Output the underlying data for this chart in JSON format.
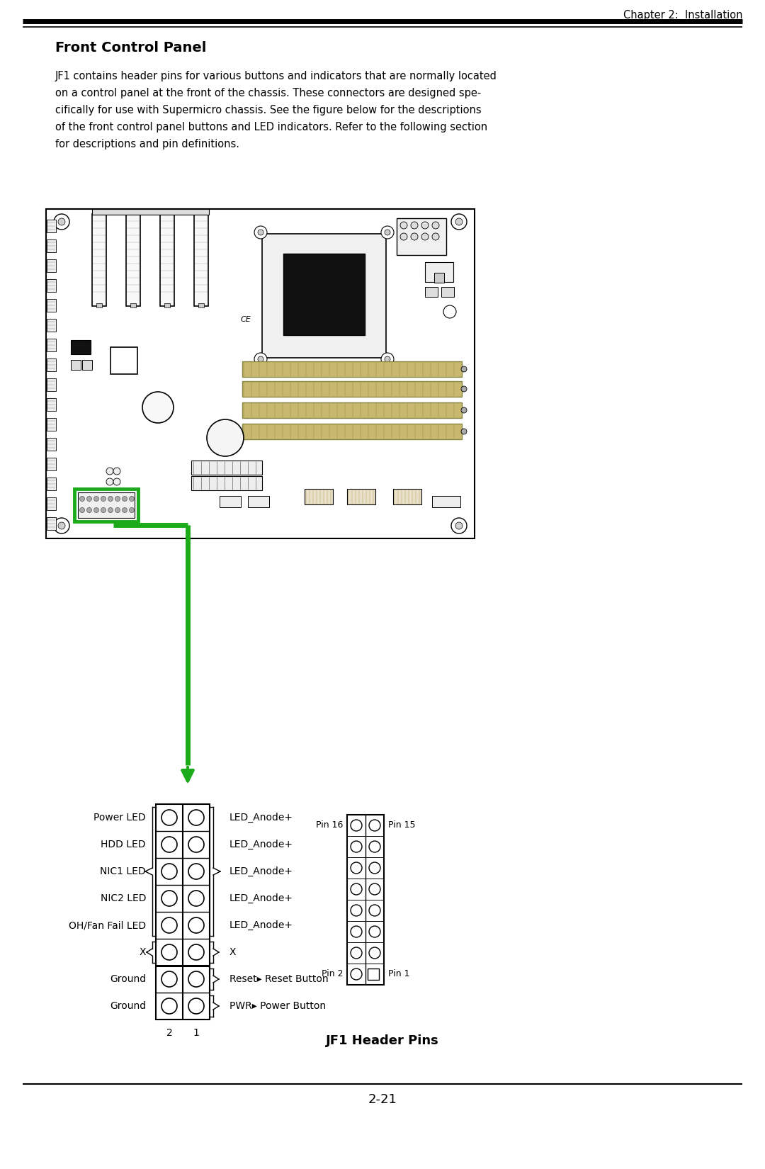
{
  "title": "Front Control Panel",
  "chapter_header": "Chapter 2:  Installation",
  "page_number": "2-21",
  "footer_label": "JF1 Header Pins",
  "body_text_lines": [
    "JF1 contains header pins for various buttons and indicators that are normally located",
    "on a control panel at the front of the chassis. These connectors are designed spe-",
    "cifically for use with Supermicro chassis. See the figure below for the descriptions",
    "of the front control panel buttons and LED indicators. Refer to the following section",
    "for descriptions and pin definitions."
  ],
  "pin_rows": [
    {
      "left": "Power LED",
      "right": "LED_Anode+",
      "has_right_bracket": true
    },
    {
      "left": "HDD LED",
      "right": "LED_Anode+",
      "has_right_bracket": true
    },
    {
      "left": "NIC1 LED",
      "right": "LED_Anode+",
      "has_right_bracket": true
    },
    {
      "left": "NIC2 LED",
      "right": "LED_Anode+",
      "has_right_bracket": true
    },
    {
      "left": "OH/Fan Fail LED",
      "right": "LED_Anode+",
      "has_right_bracket": true
    },
    {
      "left": "X",
      "right": "X",
      "has_right_bracket": true
    },
    {
      "left": "Ground",
      "right": "Reset",
      "has_right_bracket": true,
      "right_extra": "Reset Button"
    },
    {
      "left": "Ground",
      "right": "PWR",
      "has_right_bracket": true,
      "right_extra": "Power Button"
    }
  ],
  "col_labels": [
    "2",
    "1"
  ],
  "pin16_label": "Pin 16",
  "pin15_label": "Pin 15",
  "pin2_label": "Pin 2",
  "pin1_label": "Pin 1",
  "bg_color": "#ffffff",
  "green_color": "#1aaa1a",
  "black": "#000000",
  "gray": "#888888",
  "tan": "#c8b878",
  "tan2": "#d4c48a"
}
